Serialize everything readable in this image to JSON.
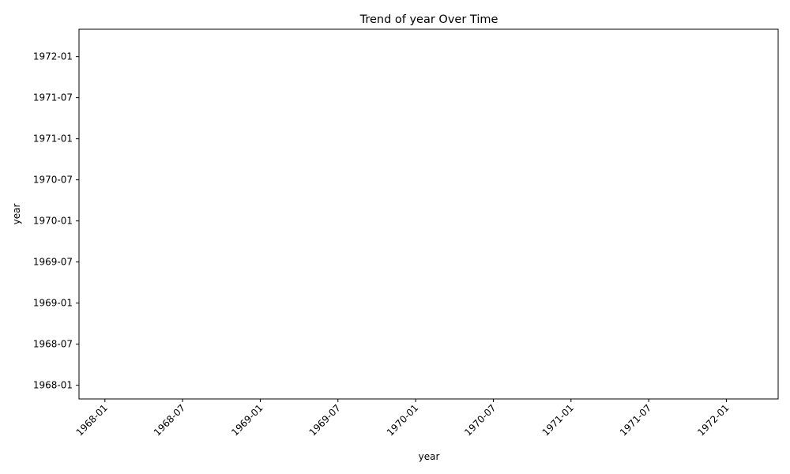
{
  "chart_data": {
    "type": "line",
    "title": "Trend of year Over Time",
    "xlabel": "year",
    "ylabel": "year",
    "x_ticks": [
      "1968-01",
      "1968-07",
      "1969-01",
      "1969-07",
      "1970-01",
      "1970-07",
      "1971-01",
      "1971-07",
      "1972-01"
    ],
    "y_ticks": [
      "1968-01",
      "1968-07",
      "1969-01",
      "1969-07",
      "1970-01",
      "1970-07",
      "1971-01",
      "1971-07",
      "1972-01"
    ],
    "xlim": [
      "1967-11",
      "1972-05"
    ],
    "ylim": [
      "1967-11",
      "1972-05"
    ],
    "series": [],
    "grid": false,
    "x_tick_rotation_deg": 45
  }
}
